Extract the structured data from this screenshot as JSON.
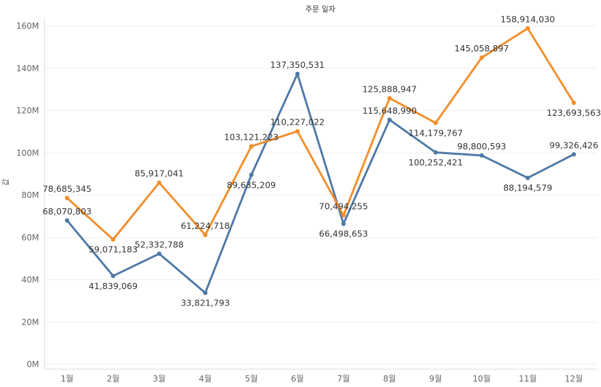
{
  "chart_data": {
    "type": "line",
    "title": "주문 일자",
    "xlabel": "",
    "ylabel": "값",
    "categories": [
      "1월",
      "2월",
      "3월",
      "4월",
      "5월",
      "6월",
      "7월",
      "8월",
      "9월",
      "10월",
      "11월",
      "12월"
    ],
    "ylim": [
      0,
      165000000
    ],
    "yticks": [
      0,
      20000000,
      40000000,
      60000000,
      80000000,
      100000000,
      120000000,
      140000000,
      160000000
    ],
    "ytick_labels": [
      "0M",
      "20M",
      "40M",
      "60M",
      "80M",
      "100M",
      "120M",
      "140M",
      "160M"
    ],
    "grid": true,
    "series": [
      {
        "color": "#4e79a7",
        "values": [
          68070803,
          41839069,
          52332788,
          33821793,
          89635209,
          137350531,
          66498653,
          115648990,
          100252421,
          98800593,
          88194579,
          99326426
        ],
        "labels": [
          "68,070,803",
          "41,839,069",
          "52,332,788",
          "33,821,793",
          "89,635,209",
          "137,350,531",
          "66,498,653",
          "115,648,990",
          "100,252,421",
          "98,800,593",
          "88,194,579",
          "99,326,426"
        ]
      },
      {
        "color": "#f28e2b",
        "values": [
          78685345,
          59071183,
          85917041,
          61224718,
          103121223,
          110227022,
          70494255,
          125888947,
          114179767,
          145058897,
          158914030,
          123693563
        ],
        "labels": [
          "78,685,345",
          "59,071,183",
          "85,917,041",
          "61,224,718",
          "103,121,223",
          "110,227,022",
          "70,494,255",
          "125,888,947",
          "114,179,767",
          "145,058,897",
          "158,914,030",
          "123,693,563"
        ]
      }
    ]
  }
}
